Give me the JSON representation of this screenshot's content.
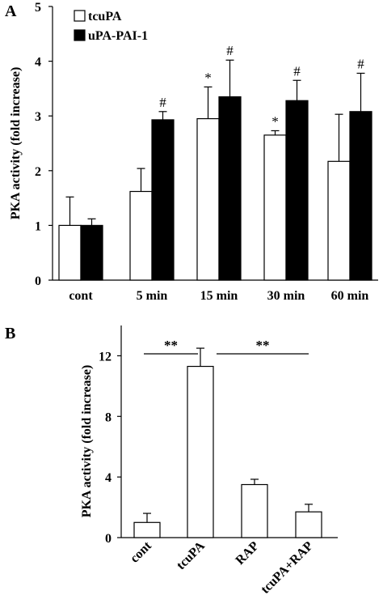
{
  "chart_data": [
    {
      "type": "bar",
      "panel_label": "A",
      "ylabel": "PKA activity (fold increase)",
      "ylim": [
        0,
        5
      ],
      "yticks": [
        "0",
        "1",
        "2",
        "3",
        "4",
        "5"
      ],
      "categories": [
        "cont",
        "5 min",
        "15 min",
        "30 min",
        "60 min"
      ],
      "series": [
        {
          "name": "tcuPA",
          "fill": "#ffffff",
          "values": [
            1.0,
            1.62,
            2.95,
            2.65,
            2.17
          ],
          "errors": [
            0.52,
            0.42,
            0.58,
            0.08,
            0.86
          ]
        },
        {
          "name": "uPA-PAI-1",
          "fill": "#000000",
          "values": [
            1.0,
            2.93,
            3.35,
            3.28,
            3.08
          ],
          "errors": [
            0.12,
            0.15,
            0.67,
            0.37,
            0.7
          ]
        }
      ],
      "annotations": [
        {
          "category": "5 min",
          "series": "uPA-PAI-1",
          "text": "#"
        },
        {
          "category": "15 min",
          "series": "tcuPA",
          "text": "*"
        },
        {
          "category": "15 min",
          "series": "uPA-PAI-1",
          "text": "#"
        },
        {
          "category": "30 min",
          "series": "tcuPA",
          "text": "*"
        },
        {
          "category": "30 min",
          "series": "uPA-PAI-1",
          "text": "#"
        },
        {
          "category": "60 min",
          "series": "uPA-PAI-1",
          "text": "#"
        }
      ],
      "legend": "top-left",
      "grid": false
    },
    {
      "type": "bar",
      "panel_label": "B",
      "ylabel": "PKA activity (fold increase)",
      "ylim": [
        0,
        14
      ],
      "yticks": [
        "0",
        "4",
        "8",
        "12"
      ],
      "categories": [
        "cont",
        "tcuPA",
        "RAP",
        "tcuPA+RAP"
      ],
      "values": [
        1.0,
        11.3,
        3.5,
        1.7
      ],
      "errors": [
        0.6,
        1.2,
        0.35,
        0.5
      ],
      "significance": [
        {
          "from": "cont",
          "to": "tcuPA",
          "text": "**"
        },
        {
          "from": "tcuPA",
          "to": "tcuPA+RAP",
          "text": "**"
        }
      ],
      "grid": false
    }
  ]
}
